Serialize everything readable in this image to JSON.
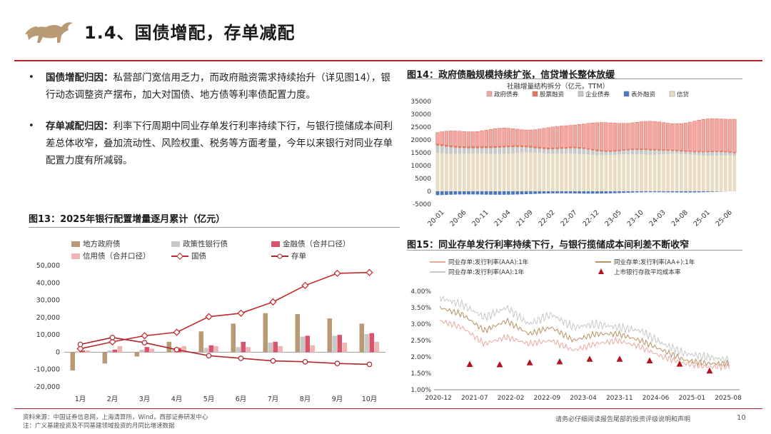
{
  "header": {
    "title": "1.4、国债增配，存单减配",
    "logo": "bull-icon",
    "brand_color": "#b5202a"
  },
  "bullets": [
    {
      "label": "国债增配归因：",
      "text": "私营部门宽信用乏力，而政府融资需求持续抬升（详见图14），银行动态调整资产摆布，加大对国债、地方债等利率债配置力度。"
    },
    {
      "label": "存单减配归因：",
      "text": "利率下行周期中同业存单发行利率持续下行，与银行揽储成本间利差总体收窄，叠加流动性、风险权重、税务等方面考量，今年以来银行对同业存单配置力度有所减弱。"
    }
  ],
  "footer": {
    "source": "资料来源：中国证券信息网，上海清算所，Wind，西部证券研发中心",
    "note": "注：广义基建投资及不同基建领域投资的月同比增速数据",
    "disclaimer": "请务必仔细阅读报告尾部的投资评级说明和声明",
    "page_number": "10"
  },
  "fig13": {
    "title": "图13：2025年银行配置增量逐月累计（亿元）",
    "legend": [
      "地方政府债",
      "政策性银行债",
      "金融债（合并口径）",
      "信用债（合并口径）",
      "国债",
      "存单"
    ]
  },
  "fig14": {
    "title": "图14：政府债融规模持续扩张，信贷增长整体放缓",
    "subtitle": "社融增量结构拆分（亿元，TTM）",
    "legend": [
      "政府债券",
      "股票融资",
      "企业债券",
      "表外融资",
      "信贷"
    ]
  },
  "fig15": {
    "title": "图15：同业存单发行利率持续下行，与银行揽储成本间利差不断收窄",
    "legend": [
      "同业存单:发行利率(AAA):1年",
      "同业存单:发行利率(AA+):1年",
      "同业存单:发行利率(AA):1年",
      "上市银行存款平均成本率"
    ]
  },
  "chart_data": [
    {
      "id": "fig13",
      "type": "bar",
      "title": "图13：2025年银行配置增量逐月累计（亿元）",
      "categories": [
        "1月",
        "2月",
        "3月",
        "4月",
        "5月",
        "6月",
        "7月",
        "8月",
        "9月",
        "10月"
      ],
      "ylim": [
        -20000,
        50000
      ],
      "yticks": [
        "50,000",
        "40,000",
        "30,000",
        "20,000",
        "10,000",
        "0",
        "-10,000",
        "-20,000"
      ],
      "bar_series": [
        {
          "name": "地方政府债",
          "color": "#b89a74",
          "values": [
            -10500,
            -6500,
            -2500,
            6000,
            12000,
            16500,
            22500,
            22000,
            19500,
            16500
          ]
        },
        {
          "name": "政策性银行债",
          "color": "#c8c8c8",
          "values": [
            500,
            1000,
            1500,
            2000,
            2500,
            3000,
            5500,
            9000,
            9500,
            10500
          ]
        },
        {
          "name": "金融债（合并口径）",
          "color": "#d9536a",
          "values": [
            1000,
            1500,
            3000,
            2500,
            4000,
            6000,
            6000,
            9500,
            10000,
            11000
          ]
        },
        {
          "name": "信用债（合并口径）",
          "color": "#f2b3b3",
          "values": [
            1000,
            3500,
            2000,
            3500,
            3500,
            3000,
            3500,
            4000,
            5500,
            6000
          ]
        }
      ],
      "line_series": [
        {
          "name": "国债",
          "color": "#c0282e",
          "values": [
            2000,
            6000,
            9500,
            11500,
            20500,
            22500,
            29000,
            38500,
            45500,
            46000
          ]
        },
        {
          "name": "存单",
          "color": "#b0272d",
          "values": [
            4500,
            8500,
            5500,
            1500,
            -2000,
            -3500,
            -5000,
            -5500,
            -6500,
            -7000
          ]
        }
      ]
    },
    {
      "id": "fig14",
      "type": "bar",
      "title": "图14：政府债融规模持续扩张，信贷增长整体放缓",
      "subtitle": "社融增量结构拆分（亿元，TTM）",
      "x_labels": [
        "20-01",
        "20-06",
        "20-11",
        "21-04",
        "21-09",
        "22-02",
        "22-07",
        "22-12",
        "23-05",
        "23-10",
        "24-03",
        "24-08",
        "25-01",
        "25-06"
      ],
      "ylim": [
        -5000,
        35000
      ],
      "yticks": [
        "35000",
        "30000",
        "25000",
        "20000",
        "15000",
        "10000",
        "5000",
        "0",
        "-5000"
      ],
      "series": [
        {
          "name": "政府债券",
          "color": "#f2a7a0",
          "start": 4500,
          "end": 12500
        },
        {
          "name": "股票融资",
          "color": "#e8755a",
          "start": 600,
          "end": 300
        },
        {
          "name": "企业债券",
          "color": "#c9c9c9",
          "start": 2500,
          "end": 1000
        },
        {
          "name": "表外融资",
          "color": "#4a78c0",
          "start": -1500,
          "end": -100
        },
        {
          "name": "信贷",
          "color": "#e8dcc2",
          "start": 15000,
          "end": 14000
        }
      ],
      "total_range": [
        21000,
        29000
      ]
    },
    {
      "id": "fig15",
      "type": "line",
      "title": "图15：同业存单发行利率持续下行，与银行揽储成本间利差不断收窄",
      "x_labels": [
        "2020-12",
        "2021-07",
        "2022-02",
        "2022-09",
        "2023-04",
        "2023-11",
        "2024-06",
        "2025-01",
        "2025-08"
      ],
      "ylim": [
        1.0,
        4.0
      ],
      "yticks": [
        "4.00%",
        "3.50%",
        "3.00%",
        "2.50%",
        "2.00%",
        "1.50%",
        "1.00%"
      ],
      "series": [
        {
          "name": "同业存单:发行利率(AAA):1年",
          "color": "#e8a8a0",
          "values": [
            3.1,
            2.9,
            2.4,
            2.6,
            2.4,
            2.5,
            2.2,
            2.4,
            2.5,
            2.3,
            2.0,
            1.8,
            1.7,
            1.7
          ]
        },
        {
          "name": "同业存单:发行利率(AA+):1年",
          "color": "#b89060",
          "values": [
            3.5,
            3.3,
            2.8,
            3.1,
            2.7,
            2.9,
            2.5,
            2.7,
            2.7,
            2.5,
            2.2,
            1.9,
            1.8,
            1.8
          ]
        },
        {
          "name": "同业存单:发行利率(AA):1年",
          "color": "#c8c8c8",
          "values": [
            3.8,
            3.6,
            3.2,
            3.5,
            3.0,
            3.3,
            2.9,
            3.0,
            2.9,
            2.8,
            2.4,
            2.1,
            2.0,
            1.9
          ]
        }
      ],
      "markers": {
        "name": "上市银行存款平均成本率",
        "color": "#b0141e",
        "values": [
          1.77,
          1.76,
          1.82,
          1.85,
          1.93,
          1.93,
          1.88,
          1.78,
          1.57
        ]
      }
    }
  ]
}
